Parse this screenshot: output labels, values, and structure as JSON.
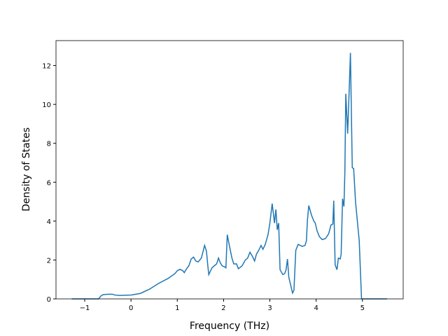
{
  "chart_data": {
    "type": "line",
    "xlabel": "Frequency (THz)",
    "ylabel": "Density of States",
    "xlim": [
      -1.62,
      5.88
    ],
    "ylim": [
      0,
      13.28
    ],
    "xticks": [
      {
        "value": -1,
        "label": "−1"
      },
      0,
      1,
      2,
      3,
      4,
      5
    ],
    "yticks": [
      0,
      2,
      4,
      6,
      8,
      10,
      12
    ],
    "grid": false,
    "series": [
      {
        "color": "#1f77b4",
        "x": [
          -1.28,
          -0.7,
          -0.65,
          -0.6,
          -0.5,
          -0.4,
          -0.35,
          -0.25,
          0,
          0.2,
          0.4,
          0.6,
          0.8,
          0.95,
          1.0,
          1.06,
          1.12,
          1.15,
          1.2,
          1.25,
          1.3,
          1.35,
          1.4,
          1.45,
          1.52,
          1.59,
          1.63,
          1.66,
          1.68,
          1.75,
          1.8,
          1.85,
          1.89,
          1.93,
          1.97,
          2.02,
          2.05,
          2.08,
          2.12,
          2.18,
          2.22,
          2.28,
          2.32,
          2.4,
          2.47,
          2.52,
          2.57,
          2.62,
          2.67,
          2.71,
          2.76,
          2.81,
          2.85,
          2.9,
          2.96,
          3.0,
          3.05,
          3.1,
          3.13,
          3.16,
          3.19,
          3.22,
          3.28,
          3.32,
          3.35,
          3.38,
          3.41,
          3.49,
          3.52,
          3.56,
          3.61,
          3.7,
          3.76,
          3.79,
          3.81,
          3.84,
          3.9,
          3.95,
          3.98,
          4.02,
          4.07,
          4.13,
          4.2,
          4.27,
          4.32,
          4.36,
          4.38,
          4.41,
          4.45,
          4.48,
          4.52,
          4.54,
          4.57,
          4.6,
          4.62,
          4.64,
          4.68,
          4.71,
          4.74,
          4.78,
          4.81,
          4.85,
          4.93,
          4.98,
          5.53
        ],
        "values": [
          0,
          0,
          0.15,
          0.22,
          0.24,
          0.24,
          0.2,
          0.18,
          0.2,
          0.28,
          0.5,
          0.8,
          1.05,
          1.3,
          1.45,
          1.52,
          1.45,
          1.35,
          1.55,
          1.7,
          2.05,
          2.15,
          1.95,
          1.9,
          2.1,
          2.75,
          2.45,
          1.7,
          1.25,
          1.6,
          1.7,
          1.8,
          2.1,
          1.85,
          1.7,
          1.65,
          1.6,
          3.3,
          2.8,
          2.1,
          1.8,
          1.8,
          1.55,
          1.7,
          2.0,
          2.1,
          2.4,
          2.2,
          1.95,
          2.3,
          2.5,
          2.75,
          2.55,
          2.8,
          3.3,
          3.9,
          4.9,
          3.9,
          4.6,
          3.55,
          3.9,
          1.5,
          1.25,
          1.3,
          1.5,
          2.05,
          1.1,
          0.3,
          0.45,
          2.5,
          2.8,
          2.7,
          2.75,
          3.0,
          4.0,
          4.8,
          4.3,
          4.0,
          3.9,
          3.5,
          3.2,
          3.05,
          3.1,
          3.35,
          3.8,
          3.85,
          5.05,
          1.75,
          1.5,
          2.1,
          2.05,
          2.3,
          5.15,
          4.75,
          6.5,
          10.55,
          8.5,
          10.5,
          12.65,
          6.75,
          6.7,
          5.0,
          3.0,
          0,
          0
        ]
      }
    ]
  }
}
